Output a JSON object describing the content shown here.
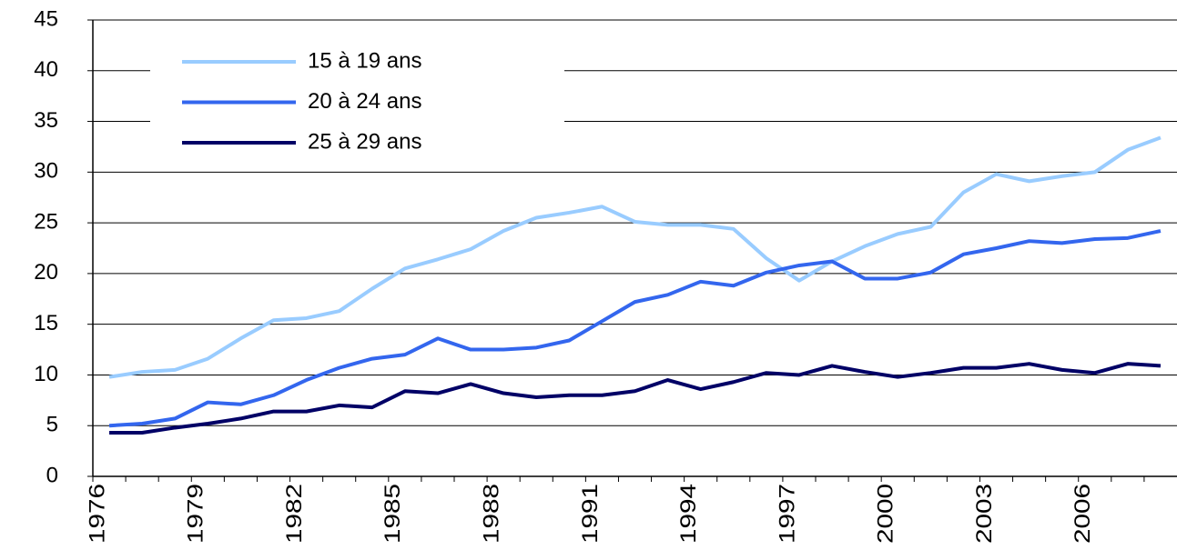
{
  "chart_data": {
    "type": "line",
    "categories": [
      "1976",
      null,
      null,
      "1979",
      null,
      null,
      "1982",
      null,
      null,
      "1985",
      null,
      null,
      "1988",
      null,
      null,
      "1991",
      null,
      null,
      "1994",
      null,
      null,
      "1997",
      null,
      null,
      "2000",
      null,
      null,
      "2003",
      null,
      null,
      "2006",
      null,
      null
    ],
    "series": [
      {
        "name": "15 à 19 ans",
        "color": "#99ccff",
        "values": [
          9.8,
          10.3,
          10.5,
          11.6,
          13.6,
          15.4,
          15.6,
          16.3,
          18.5,
          20.5,
          21.4,
          22.4,
          24.2,
          25.5,
          26,
          26.6,
          25.1,
          24.8,
          24.8,
          24.4,
          21.5,
          19.3,
          21.2,
          22.7,
          23.9,
          24.6,
          28,
          29.8,
          29.1,
          29.6,
          30,
          32.2,
          33.4
        ]
      },
      {
        "name": "20 à 24 ans",
        "color": "#3366ee",
        "values": [
          5,
          5.2,
          5.7,
          7.3,
          7.1,
          8,
          9.5,
          10.7,
          11.6,
          12,
          13.6,
          12.5,
          12.5,
          12.7,
          13.4,
          15.3,
          17.2,
          17.9,
          19.2,
          18.8,
          20.1,
          20.8,
          21.2,
          19.5,
          19.5,
          20.1,
          21.9,
          22.5,
          23.2,
          23,
          23.4,
          23.5,
          24.2
        ]
      },
      {
        "name": "25 à 29 ans",
        "color": "#000066",
        "values": [
          4.3,
          4.3,
          4.8,
          5.2,
          5.7,
          6.4,
          6.4,
          7,
          6.8,
          8.4,
          8.2,
          9.1,
          8.2,
          7.8,
          8,
          8,
          8.4,
          9.5,
          8.6,
          9.3,
          10.2,
          10,
          10.9,
          10.3,
          9.8,
          10.2,
          10.7,
          10.7,
          11.1,
          10.5,
          10.2,
          11.1,
          10.9
        ]
      }
    ],
    "ylim": [
      0,
      45
    ],
    "yticks": [
      0,
      5,
      10,
      15,
      20,
      25,
      30,
      35,
      40,
      45
    ],
    "grid": true,
    "legend": "upper left"
  }
}
